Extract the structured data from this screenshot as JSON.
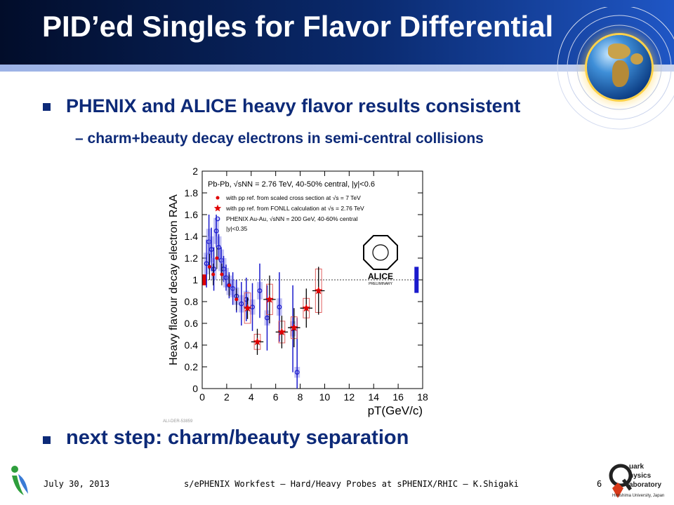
{
  "slide": {
    "title": "PID’ed Singles for Flavor Differential",
    "bullets": [
      "PHENIX and ALICE heavy flavor results consistent",
      "– charm+beauty decay electrons in semi-central collisions",
      "next step: charm/beauty separation"
    ]
  },
  "footer": {
    "date": "July 30, 2013",
    "center": "s/ePHENIX Workfest – Hard/Heavy Probes at sPHENIX/RHIC – K.Shigaki",
    "page": "6"
  },
  "logos": {
    "qpl": [
      "uark",
      "hysics",
      "aboratory",
      "Hiroshima University, Japan"
    ]
  },
  "chart_data": {
    "type": "scatter",
    "xlabel": "pT(GeV/c)",
    "ylabel": "Heavy flavour decay electron RAA",
    "xlim": [
      0,
      18
    ],
    "ylim": [
      0,
      2
    ],
    "xticks": [
      0,
      2,
      4,
      6,
      8,
      10,
      12,
      14,
      16,
      18
    ],
    "yticks": [
      0,
      0.2,
      0.4,
      0.6,
      0.8,
      1,
      1.2,
      1.4,
      1.6,
      1.8,
      2
    ],
    "legend_header": "Pb-Pb, √sNN = 2.76 TeV, 40-50% central, |y|<0.6",
    "legend": [
      "with pp ref. from scaled cross section at √s = 7 TeV",
      "with pp ref. from FONLL calculation at √s = 2.76 TeV",
      "PHENIX Au-Au, √sNN = 200 GeV, 40-60% central",
      "|y|<0.35"
    ],
    "logo_text": [
      "ALICE",
      "PRELIMINARY"
    ],
    "figure_id": "ALI-DER-53859",
    "series": [
      {
        "name": "with pp ref. from FONLL calculation at √s = 2.76 TeV",
        "color": "#e00000",
        "points": [
          {
            "x": 3.7,
            "y": 0.74,
            "xerr": 0.25,
            "yerr": 0.1,
            "sys": 0.14
          },
          {
            "x": 4.5,
            "y": 0.43,
            "xerr": 0.5,
            "yerr": 0.12,
            "sys": 0.07
          },
          {
            "x": 5.5,
            "y": 0.82,
            "xerr": 0.5,
            "yerr": 0.22,
            "sys": 0.14
          },
          {
            "x": 6.5,
            "y": 0.52,
            "xerr": 0.5,
            "yerr": 0.15,
            "sys": 0.1
          },
          {
            "x": 7.5,
            "y": 0.56,
            "xerr": 0.5,
            "yerr": 0.18,
            "sys": 0.1
          },
          {
            "x": 8.5,
            "y": 0.74,
            "xerr": 0.5,
            "yerr": 0.18,
            "sys": 0.09
          },
          {
            "x": 9.5,
            "y": 0.9,
            "xerr": 0.5,
            "yerr": 0.22,
            "sys": 0.2
          }
        ]
      },
      {
        "name": "with pp ref. from scaled cross section at √s = 7 TeV",
        "color": "#e00000",
        "points": [
          {
            "x": 0.6,
            "y": 1.12,
            "yerr": 0.12
          },
          {
            "x": 0.9,
            "y": 1.05,
            "yerr": 0.1
          },
          {
            "x": 1.2,
            "y": 1.2,
            "yerr": 0.1
          },
          {
            "x": 1.6,
            "y": 1.05,
            "yerr": 0.1
          },
          {
            "x": 2.2,
            "y": 0.95,
            "yerr": 0.1
          },
          {
            "x": 2.8,
            "y": 0.82,
            "yerr": 0.1
          }
        ]
      },
      {
        "name": "PHENIX Au-Au, √sNN = 200 GeV, 40-60% central",
        "color": "#1a1acc",
        "points": [
          {
            "x": 0.35,
            "y": 1.15,
            "yerr": 0.22,
            "sys": 0.1
          },
          {
            "x": 0.55,
            "y": 1.35,
            "yerr": 0.25,
            "sys": 0.12
          },
          {
            "x": 0.75,
            "y": 1.28,
            "yerr": 0.2,
            "sys": 0.12
          },
          {
            "x": 0.95,
            "y": 1.1,
            "yerr": 0.2,
            "sys": 0.1
          },
          {
            "x": 1.15,
            "y": 1.45,
            "yerr": 0.15,
            "sys": 0.12
          },
          {
            "x": 1.35,
            "y": 1.3,
            "yerr": 0.12,
            "sys": 0.1
          },
          {
            "x": 1.55,
            "y": 1.18,
            "yerr": 0.12,
            "sys": 0.1
          },
          {
            "x": 1.75,
            "y": 1.1,
            "yerr": 0.12,
            "sys": 0.1
          },
          {
            "x": 1.95,
            "y": 1.02,
            "yerr": 0.12,
            "sys": 0.09
          },
          {
            "x": 2.2,
            "y": 0.95,
            "yerr": 0.12,
            "sys": 0.09
          },
          {
            "x": 2.5,
            "y": 0.92,
            "yerr": 0.15,
            "sys": 0.08
          },
          {
            "x": 2.8,
            "y": 0.85,
            "yerr": 0.15,
            "sys": 0.08
          },
          {
            "x": 3.2,
            "y": 0.78,
            "yerr": 0.2,
            "sys": 0.08
          },
          {
            "x": 3.6,
            "y": 0.82,
            "yerr": 0.2,
            "sys": 0.08
          },
          {
            "x": 4.1,
            "y": 0.75,
            "yerr": 0.22,
            "sys": 0.07
          },
          {
            "x": 4.7,
            "y": 0.9,
            "yerr": 0.25,
            "sys": 0.08
          },
          {
            "x": 5.3,
            "y": 0.65,
            "yerr": 0.3,
            "sys": 0.07
          },
          {
            "x": 6.3,
            "y": 0.75,
            "yerr": 0.32,
            "sys": 0.08
          },
          {
            "x": 7.4,
            "y": 0.55,
            "yerr": 0.4,
            "sys": 0.07
          },
          {
            "x": 7.75,
            "y": 0.15,
            "yerr": 0.5,
            "sys": 0.05
          }
        ]
      }
    ],
    "normalization": [
      {
        "x": 0.2,
        "ylow": 0.95,
        "yhigh": 1.05,
        "color": "#e00000"
      },
      {
        "x": 17.5,
        "ylow": 0.88,
        "yhigh": 1.12,
        "color": "#1a1acc"
      }
    ]
  }
}
